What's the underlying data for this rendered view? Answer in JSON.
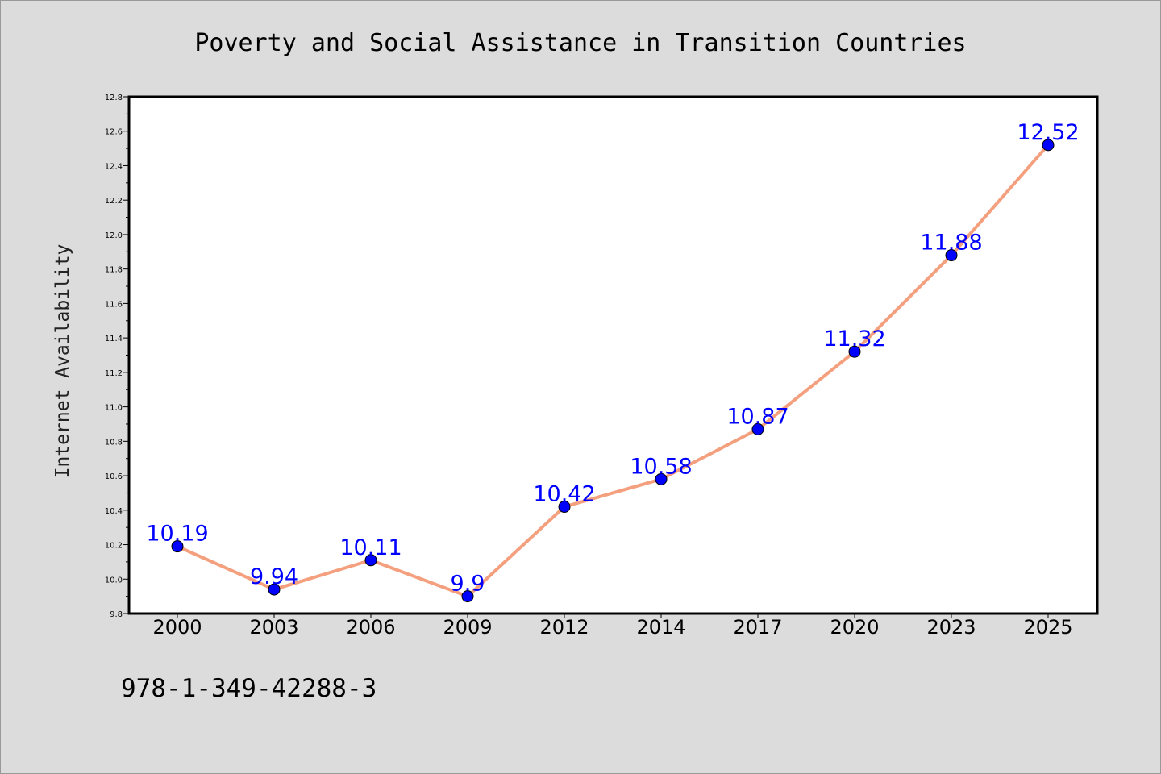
{
  "footer_text": "978-1-349-42288-3",
  "chart_data": {
    "type": "line",
    "title": "Poverty and Social Assistance in Transition Countries",
    "xlabel": "",
    "ylabel": "Internet Availability",
    "categories": [
      "2000",
      "2003",
      "2006",
      "2009",
      "2012",
      "2014",
      "2017",
      "2020",
      "2023",
      "2025"
    ],
    "series": [
      {
        "values": [
          10.19,
          9.94,
          10.11,
          9.9,
          10.42,
          10.58,
          10.87,
          11.32,
          11.88,
          12.52
        ],
        "labels": [
          "10.19",
          "9.94",
          "10.11",
          "9.9",
          "10.42",
          "10.58",
          "10.87",
          "11.32",
          "11.88",
          "12.52"
        ]
      }
    ],
    "ylim": [
      9.8,
      12.8
    ],
    "yticks": [
      "9.8",
      "10.0",
      "10.2",
      "10.4",
      "10.6",
      "10.8",
      "11.0",
      "11.2",
      "11.4",
      "11.6",
      "11.8",
      "12.0",
      "12.2",
      "12.4",
      "12.6",
      "12.8"
    ],
    "grid": false,
    "legend": "none",
    "colors": {
      "line": "#f4a07e",
      "marker": "#0000ff",
      "data_label": "#0000ff",
      "background": "#dcdcdc",
      "plot_background": "#ffffff"
    }
  }
}
